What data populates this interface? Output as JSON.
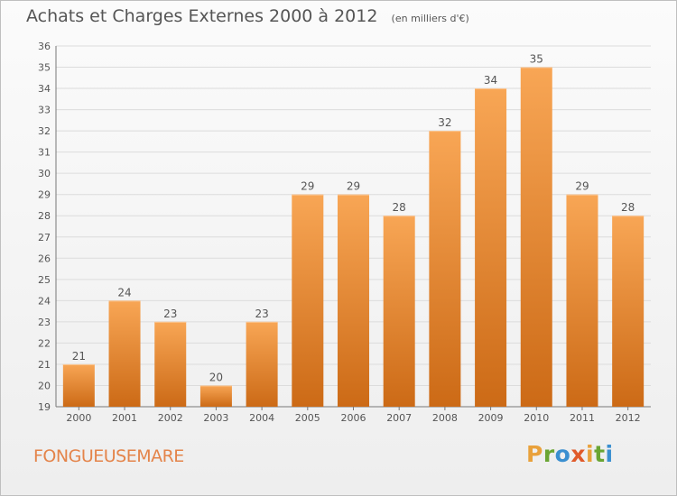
{
  "header": {
    "title": "Achats et Charges Externes 2000 à 2012",
    "unit": "(en milliers d'€)"
  },
  "footer": {
    "commune": "FONGUEUSEMARE",
    "logo_text": "Proxiti"
  },
  "colors": {
    "bar_top": "#f8a655",
    "bar_bottom": "#cc6a16",
    "grid": "#dcdcdc",
    "commune_text": "#e4844a",
    "logo_letters": [
      "#e9a13b",
      "#6aa533",
      "#3a8fd0",
      "#e05a2a",
      "#e9a13b",
      "#6aa533",
      "#3a8fd0"
    ]
  },
  "chart_data": {
    "type": "bar",
    "title": "Achats et Charges Externes 2000 à 2012",
    "subtitle": "(en milliers d'€)",
    "xlabel": "",
    "ylabel": "",
    "categories": [
      "2000",
      "2001",
      "2002",
      "2003",
      "2004",
      "2005",
      "2006",
      "2007",
      "2008",
      "2009",
      "2010",
      "2011",
      "2012"
    ],
    "values": [
      21,
      24,
      23,
      20,
      23,
      29,
      29,
      28,
      32,
      34,
      35,
      29,
      28
    ],
    "ylim": [
      19,
      36
    ],
    "yticks": [
      19,
      20,
      21,
      22,
      23,
      24,
      25,
      26,
      27,
      28,
      29,
      30,
      31,
      32,
      33,
      34,
      35,
      36
    ],
    "grid": true,
    "data_labels": true,
    "legend": "none"
  }
}
